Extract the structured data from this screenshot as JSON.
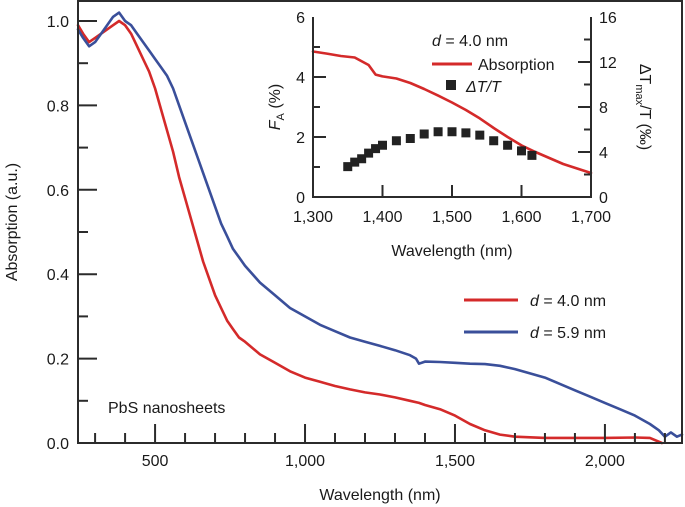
{
  "chart_data": [
    {
      "id": "main",
      "type": "line",
      "title": "",
      "xlabel": "Wavelength (nm)",
      "ylabel": "Absorption (a.u.)",
      "xlim": [
        243,
        2257
      ],
      "ylim": [
        0,
        1.05
      ],
      "x_ticks_major": [
        500,
        1000,
        1500,
        2000
      ],
      "x_tick_labels": [
        "500",
        "1,000",
        "1,500",
        "2,000"
      ],
      "x_ticks_minor_step": 100,
      "y_ticks_major": [
        0.0,
        0.2,
        0.4,
        0.6,
        0.8,
        1.0
      ],
      "y_tick_labels": [
        "0.0",
        "0.2",
        "0.4",
        "0.6",
        "0.8",
        "1.0"
      ],
      "y_ticks_minor_step": 0.1,
      "annotation": "PbS nanosheets",
      "legend": {
        "placement": "bottom-right",
        "entries": [
          {
            "label_prefix": "d",
            "label_suffix": " = 4.0 nm",
            "color": "#d42a2a"
          },
          {
            "label_prefix": "d",
            "label_suffix": " = 5.9 nm",
            "color": "#3a4f9a"
          }
        ]
      },
      "series": [
        {
          "name": "d = 4.0 nm",
          "color": "#d42a2a",
          "x": [
            243,
            260,
            280,
            300,
            320,
            340,
            360,
            380,
            400,
            420,
            440,
            460,
            480,
            500,
            520,
            540,
            560,
            580,
            600,
            620,
            640,
            660,
            680,
            700,
            720,
            740,
            760,
            780,
            800,
            850,
            900,
            950,
            1000,
            1050,
            1100,
            1150,
            1200,
            1250,
            1300,
            1350,
            1380,
            1400,
            1450,
            1500,
            1550,
            1600,
            1650,
            1700,
            1800,
            1900,
            2000,
            2100,
            2150,
            2190
          ],
          "y": [
            0.99,
            0.97,
            0.95,
            0.96,
            0.97,
            0.98,
            0.99,
            1.0,
            0.99,
            0.97,
            0.94,
            0.91,
            0.88,
            0.84,
            0.79,
            0.74,
            0.69,
            0.63,
            0.58,
            0.53,
            0.48,
            0.43,
            0.39,
            0.35,
            0.32,
            0.29,
            0.27,
            0.25,
            0.24,
            0.21,
            0.19,
            0.17,
            0.155,
            0.145,
            0.135,
            0.127,
            0.12,
            0.115,
            0.108,
            0.1,
            0.095,
            0.09,
            0.08,
            0.065,
            0.045,
            0.03,
            0.02,
            0.015,
            0.012,
            0.012,
            0.012,
            0.013,
            0.012,
            0.0
          ]
        },
        {
          "name": "d = 5.9 nm",
          "color": "#3a4f9a",
          "x": [
            243,
            260,
            280,
            300,
            320,
            340,
            360,
            380,
            400,
            420,
            440,
            460,
            480,
            500,
            520,
            540,
            560,
            580,
            600,
            620,
            640,
            660,
            680,
            700,
            720,
            740,
            760,
            780,
            800,
            850,
            900,
            950,
            1000,
            1050,
            1100,
            1150,
            1200,
            1250,
            1300,
            1350,
            1370,
            1380,
            1400,
            1450,
            1500,
            1550,
            1600,
            1650,
            1700,
            1750,
            1800,
            1850,
            1900,
            1950,
            2000,
            2050,
            2100,
            2150,
            2180,
            2200,
            2220,
            2240,
            2257
          ],
          "y": [
            0.98,
            0.96,
            0.94,
            0.95,
            0.97,
            0.99,
            1.01,
            1.02,
            1.0,
            0.99,
            0.97,
            0.95,
            0.93,
            0.91,
            0.89,
            0.87,
            0.84,
            0.8,
            0.76,
            0.72,
            0.68,
            0.64,
            0.6,
            0.56,
            0.52,
            0.49,
            0.46,
            0.44,
            0.42,
            0.38,
            0.35,
            0.32,
            0.3,
            0.28,
            0.265,
            0.25,
            0.24,
            0.23,
            0.22,
            0.208,
            0.2,
            0.188,
            0.193,
            0.192,
            0.19,
            0.188,
            0.187,
            0.183,
            0.175,
            0.165,
            0.155,
            0.14,
            0.125,
            0.11,
            0.095,
            0.08,
            0.065,
            0.045,
            0.03,
            0.015,
            0.025,
            0.015,
            0.02
          ]
        }
      ]
    },
    {
      "id": "inset",
      "type": "line+scatter",
      "xlabel": "Wavelength (nm)",
      "ylabel_left": {
        "symbol": "F",
        "subscript": "A",
        "suffix": " (%)"
      },
      "ylabel_right": {
        "prefix": "ΔT",
        "subscript": "max",
        "suffix": "/T (‰)"
      },
      "xlim": [
        1300,
        1700
      ],
      "ylim_left": [
        0,
        6
      ],
      "ylim_right": [
        0,
        16
      ],
      "x_ticks_major": [
        1300,
        1400,
        1500,
        1600,
        1700
      ],
      "x_tick_labels": [
        "1,300",
        "1,400",
        "1,500",
        "1,600",
        "1,700"
      ],
      "y_ticks_left": [
        0,
        2,
        4,
        6
      ],
      "y_tick_labels_left": [
        "0",
        "2",
        "4",
        "6"
      ],
      "y_ticks_left_minor_step": 1,
      "y_ticks_right": [
        0,
        4,
        8,
        12,
        16
      ],
      "y_tick_labels_right": [
        "0",
        "4",
        "8",
        "12",
        "16"
      ],
      "y_ticks_right_minor_step": 2,
      "legend": {
        "placement": "top-right",
        "header": {
          "prefix": "d",
          "suffix": " = 4.0 nm"
        },
        "entries": [
          {
            "kind": "line",
            "label": "Absorption",
            "color": "#d42a2a"
          },
          {
            "kind": "square",
            "label": "ΔT/T",
            "color": "#222222"
          }
        ]
      },
      "series": [
        {
          "name": "Absorption",
          "axis": "left",
          "color": "#d42a2a",
          "x": [
            1300,
            1320,
            1340,
            1360,
            1380,
            1390,
            1400,
            1420,
            1440,
            1460,
            1480,
            1500,
            1520,
            1540,
            1560,
            1580,
            1600,
            1620,
            1640,
            1660,
            1680,
            1700
          ],
          "y": [
            4.85,
            4.78,
            4.7,
            4.65,
            4.4,
            4.08,
            4.02,
            3.95,
            3.8,
            3.6,
            3.38,
            3.15,
            2.9,
            2.62,
            2.3,
            2.0,
            1.72,
            1.5,
            1.3,
            1.1,
            0.95,
            0.8
          ]
        },
        {
          "name": "ΔT/T",
          "axis": "right",
          "color": "#222222",
          "x": [
            1350,
            1360,
            1370,
            1380,
            1390,
            1400,
            1420,
            1440,
            1460,
            1480,
            1500,
            1520,
            1540,
            1560,
            1580,
            1600,
            1615
          ],
          "y": [
            2.7,
            3.1,
            3.4,
            3.9,
            4.3,
            4.6,
            5.0,
            5.2,
            5.6,
            5.8,
            5.8,
            5.7,
            5.5,
            5.0,
            4.6,
            4.1,
            3.7
          ]
        }
      ]
    }
  ]
}
